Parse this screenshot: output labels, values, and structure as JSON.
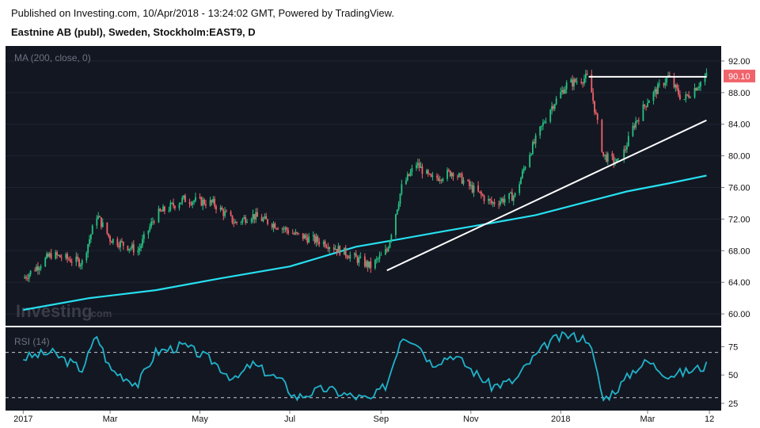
{
  "header": {
    "published_line": "Published on Investing.com, 10/Apr/2018 - 13:24:02 GMT, Powered by TradingView.",
    "symbol_line": "Eastnine AB (publ), Sweden, Stockholm:EAST9, D"
  },
  "watermark": {
    "brand": "Investing",
    "suffix": ".com"
  },
  "colors": {
    "background": "#131722",
    "up": "#26c281",
    "down": "#f0636b",
    "ma": "#26e0f0",
    "rsi": "#1fb3c9",
    "trendline": "#ffffff",
    "last_price_bg": "#f0636b"
  },
  "chart_data": [
    {
      "type": "candlestick",
      "indicator_label": "MA (200, close, 0)",
      "ylim": [
        59,
        93.5
      ],
      "y_ticks": [
        "92.00",
        "88.00",
        "84.00",
        "80.00",
        "76.00",
        "72.00",
        "68.00",
        "64.00",
        "60.00"
      ],
      "last_price_label": "90.10",
      "x_ticks": [
        "2017",
        "Mar",
        "May",
        "Jul",
        "Sep",
        "Nov",
        "2018",
        "Mar",
        "12"
      ],
      "close_series": {
        "x": [
          "2017-01-01",
          "2017-01-20",
          "2017-02-10",
          "2017-02-20",
          "2017-03-01",
          "2017-03-20",
          "2017-04-01",
          "2017-04-20",
          "2017-05-10",
          "2017-05-25",
          "2017-06-05",
          "2017-06-25",
          "2017-07-05",
          "2017-07-25",
          "2017-08-10",
          "2017-08-25",
          "2017-09-05",
          "2017-09-15",
          "2017-09-25",
          "2017-10-05",
          "2017-10-20",
          "2017-11-01",
          "2017-11-15",
          "2017-12-01",
          "2017-12-10",
          "2017-12-25",
          "2018-01-05",
          "2018-01-20",
          "2018-01-30",
          "2018-02-10",
          "2018-02-20",
          "2018-03-01",
          "2018-03-15",
          "2018-03-25",
          "2018-04-10"
        ],
        "close": [
          64.5,
          67.5,
          66.5,
          72.5,
          69.5,
          68.0,
          72.5,
          74.5,
          74.0,
          71.5,
          72.5,
          71.0,
          70.0,
          69.0,
          67.5,
          66.0,
          68.0,
          76.0,
          79.0,
          77.0,
          78.0,
          76.0,
          74.0,
          75.0,
          80.0,
          86.0,
          89.0,
          90.0,
          80.0,
          79.0,
          84.0,
          87.0,
          90.0,
          87.0,
          90.1
        ]
      },
      "ma200": {
        "x": [
          "2017-01-01",
          "2017-02-15",
          "2017-04-01",
          "2017-05-15",
          "2017-07-01",
          "2017-08-15",
          "2017-09-15",
          "2017-10-15",
          "2017-11-15",
          "2017-12-15",
          "2018-01-15",
          "2018-02-15",
          "2018-03-15",
          "2018-04-10"
        ],
        "value": [
          60.5,
          62.0,
          63.0,
          64.5,
          66.0,
          68.5,
          69.5,
          70.5,
          71.5,
          72.5,
          74.0,
          75.5,
          76.5,
          77.5
        ]
      },
      "annotations": [
        {
          "kind": "trendline",
          "x": [
            "2017-09-05",
            "2018-04-10"
          ],
          "y": [
            65.5,
            84.5
          ]
        },
        {
          "kind": "horizontal",
          "x": [
            "2018-01-20",
            "2018-04-10"
          ],
          "y": [
            90.0,
            90.0
          ]
        }
      ]
    },
    {
      "type": "line",
      "indicator_label": "RSI (14)",
      "ylim": [
        20,
        90
      ],
      "y_ticks": [
        "75",
        "50",
        "25"
      ],
      "bands": [
        70,
        30
      ],
      "rsi": {
        "x": [
          "2017-01-01",
          "2017-01-20",
          "2017-02-10",
          "2017-02-20",
          "2017-03-01",
          "2017-03-20",
          "2017-04-01",
          "2017-04-20",
          "2017-05-10",
          "2017-05-25",
          "2017-06-05",
          "2017-06-25",
          "2017-07-05",
          "2017-07-25",
          "2017-08-10",
          "2017-08-25",
          "2017-09-05",
          "2017-09-15",
          "2017-09-25",
          "2017-10-05",
          "2017-10-20",
          "2017-11-01",
          "2017-11-15",
          "2017-12-01",
          "2017-12-10",
          "2017-12-25",
          "2018-01-05",
          "2018-01-20",
          "2018-01-30",
          "2018-02-10",
          "2018-02-20",
          "2018-03-01",
          "2018-03-15",
          "2018-03-25",
          "2018-04-10"
        ],
        "value": [
          65,
          70,
          55,
          85,
          55,
          42,
          70,
          76,
          62,
          45,
          60,
          45,
          30,
          38,
          32,
          28,
          42,
          85,
          80,
          60,
          68,
          55,
          40,
          45,
          60,
          80,
          85,
          82,
          28,
          40,
          55,
          62,
          50,
          52,
          58
        ]
      }
    }
  ]
}
